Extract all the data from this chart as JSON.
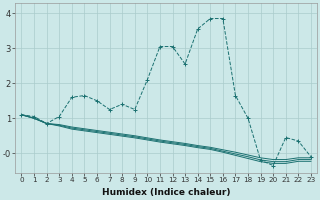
{
  "xlabel": "Humidex (Indice chaleur)",
  "ylabel": "",
  "bg_color": "#cce8e8",
  "grid_color": "#aacccc",
  "line_color": "#1a7070",
  "xlim": [
    -0.5,
    23.5
  ],
  "ylim": [
    -0.55,
    4.3
  ],
  "yticks": [
    4,
    3,
    2,
    1,
    0
  ],
  "ytick_labels": [
    "4",
    "3",
    "2",
    "1",
    "-0"
  ],
  "xticks": [
    0,
    1,
    2,
    3,
    4,
    5,
    6,
    7,
    8,
    9,
    10,
    11,
    12,
    13,
    14,
    15,
    16,
    17,
    18,
    19,
    20,
    21,
    22,
    23
  ],
  "line1_y": [
    1.1,
    1.05,
    0.85,
    1.05,
    1.6,
    1.65,
    1.5,
    1.25,
    1.4,
    1.25,
    2.1,
    3.05,
    3.05,
    2.55,
    3.55,
    3.85,
    3.85,
    1.65,
    1.0,
    -0.2,
    -0.35,
    0.45,
    0.35,
    -0.1
  ],
  "line2_y": [
    1.1,
    1.0,
    0.85,
    0.82,
    0.75,
    0.7,
    0.65,
    0.6,
    0.55,
    0.5,
    0.44,
    0.38,
    0.33,
    0.28,
    0.22,
    0.17,
    0.1,
    0.03,
    -0.05,
    -0.13,
    -0.18,
    -0.18,
    -0.13,
    -0.13
  ],
  "line3_y": [
    1.1,
    1.0,
    0.85,
    0.8,
    0.72,
    0.67,
    0.62,
    0.57,
    0.52,
    0.47,
    0.41,
    0.35,
    0.3,
    0.25,
    0.19,
    0.14,
    0.06,
    -0.02,
    -0.1,
    -0.19,
    -0.24,
    -0.24,
    -0.18,
    -0.18
  ],
  "line4_y": [
    1.1,
    1.0,
    0.85,
    0.78,
    0.69,
    0.64,
    0.59,
    0.54,
    0.49,
    0.44,
    0.38,
    0.32,
    0.27,
    0.22,
    0.16,
    0.11,
    0.03,
    -0.06,
    -0.15,
    -0.24,
    -0.29,
    -0.29,
    -0.23,
    -0.23
  ]
}
